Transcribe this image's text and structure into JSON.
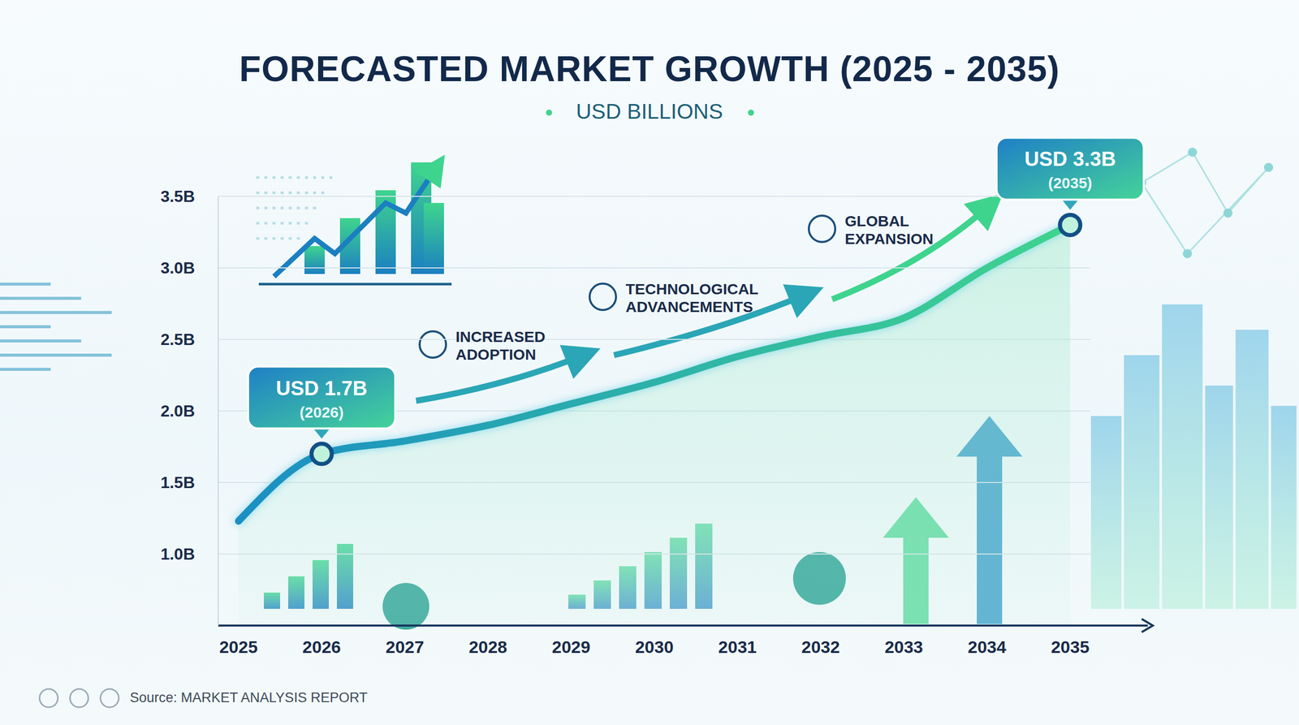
{
  "chart_data": {
    "type": "line",
    "title": "FORECASTED MARKET GROWTH (2025 - 2035)",
    "subtitle": "USD BILLIONS",
    "source": "Source: MARKET ANALYSIS REPORT",
    "categories": [
      "2025",
      "2026",
      "2027",
      "2028",
      "2029",
      "2030",
      "2031",
      "2032",
      "2033",
      "2034",
      "2035"
    ],
    "values": [
      1.23,
      1.7,
      1.79,
      1.9,
      2.05,
      2.2,
      2.38,
      2.52,
      2.65,
      3.0,
      3.3
    ],
    "color": "#1a8fc4",
    "ylim": [
      0.5,
      3.5
    ],
    "yticks": [
      {
        "value": 1.0,
        "label": "1.0B"
      },
      {
        "value": 1.5,
        "label": "1.5B"
      },
      {
        "value": 2.0,
        "label": "2.0B"
      },
      {
        "value": 2.5,
        "label": "2.5B"
      },
      {
        "value": 3.0,
        "label": "3.0B"
      },
      {
        "value": 3.5,
        "label": "3.5B"
      }
    ],
    "grid": true,
    "marker": "none",
    "callouts": [
      {
        "category": "2026",
        "value": 1.7,
        "label": "USD 1.7B",
        "sublabel": "(2026)"
      },
      {
        "category": "2035",
        "value": 3.3,
        "label": "USD 3.3B",
        "sublabel": "(2035)"
      }
    ],
    "annotations": [
      "INCREASED ADOPTION",
      "TECHNOLOGICAL ADVANCEMENTS",
      "GLOBAL EXPANSION"
    ]
  }
}
